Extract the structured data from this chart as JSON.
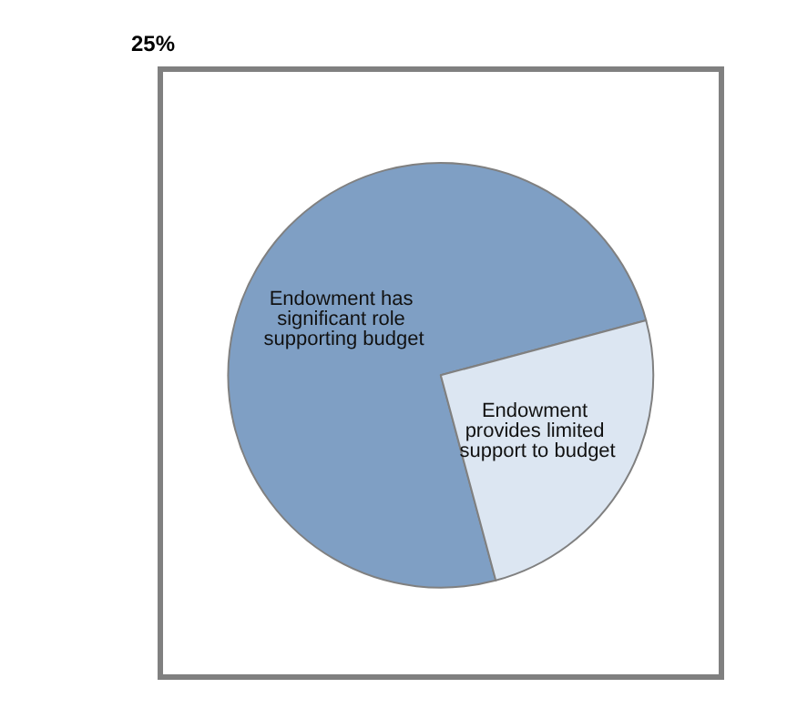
{
  "chart_data": {
    "type": "pie",
    "categories": [
      "Endowment has significant role supporting budget",
      "Endowment provides limited support to budget"
    ],
    "values": [
      75,
      25
    ],
    "colors": [
      "#7f9fc4",
      "#dce6f2"
    ],
    "annotations": [
      "25%"
    ]
  }
}
